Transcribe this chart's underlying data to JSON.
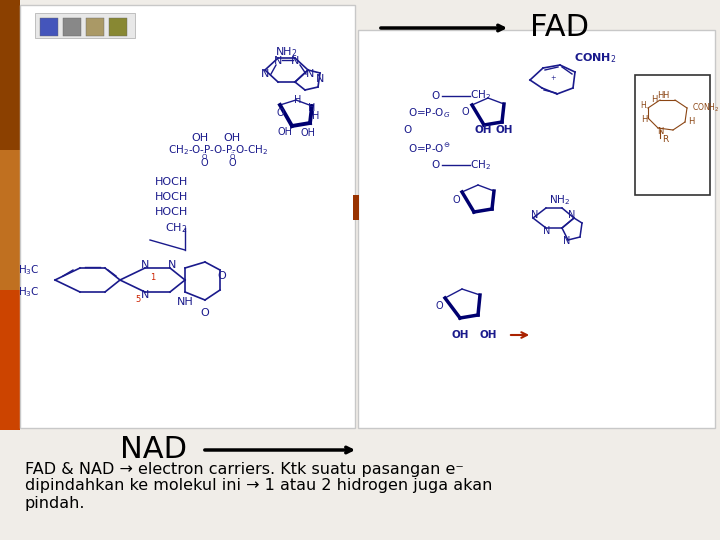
{
  "bg_color": "#f0ede8",
  "left_panel_bg": "#ffffff",
  "right_panel_bg": "#ffffff",
  "border_color": "#c8c8c8",
  "orange_bar_color": "#c07020",
  "dark_blue": "#1a1a8c",
  "red_color": "#aa2200",
  "brown_inset": "#8b4513",
  "black": "#000000",
  "fad_label": "FAD",
  "nad_label": "NAD",
  "bottom_line1": "FAD & NAD → electron carriers. Ktk suatu pasangan e⁻",
  "bottom_line2": "dipindahkan ke molekul ini → 1 atau 2 hidrogen juga akan",
  "bottom_line3": "pindah."
}
